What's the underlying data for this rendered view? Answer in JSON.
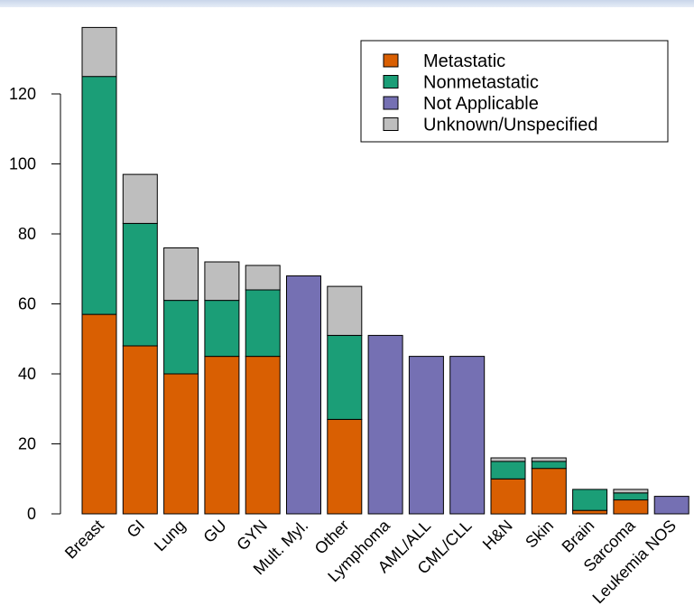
{
  "chart_data": {
    "type": "bar",
    "stacked": true,
    "title": "",
    "xlabel": "",
    "ylabel": "",
    "ylim": [
      0,
      140
    ],
    "yticks": [
      0,
      20,
      40,
      60,
      80,
      100,
      120
    ],
    "grid": false,
    "legend_position": "top-right",
    "categories": [
      "Breast",
      "GI",
      "Lung",
      "GU",
      "GYN",
      "Mult. Myl.",
      "Other",
      "Lymphoma",
      "AML/ALL",
      "CML/CLL",
      "H&N",
      "Skin",
      "Brain",
      "Sarcoma",
      "Leukemia NOS"
    ],
    "series": [
      {
        "name": "Metastatic",
        "color": "#d95f02",
        "values": [
          57,
          48,
          40,
          45,
          45,
          0,
          27,
          0,
          0,
          0,
          10,
          13,
          1,
          4,
          0
        ]
      },
      {
        "name": "Nonmetastatic",
        "color": "#1b9e77",
        "values": [
          68,
          35,
          21,
          16,
          19,
          0,
          24,
          0,
          0,
          0,
          5,
          2,
          6,
          2,
          0
        ]
      },
      {
        "name": "Not Applicable",
        "color": "#7570b3",
        "values": [
          0,
          0,
          0,
          0,
          0,
          68,
          0,
          51,
          45,
          45,
          0,
          0,
          0,
          0,
          5
        ]
      },
      {
        "name": "Unknown/Unspecified",
        "color": "#bebebe",
        "values": [
          14,
          14,
          15,
          11,
          7,
          0,
          14,
          0,
          0,
          0,
          1,
          1,
          0,
          1,
          0
        ]
      }
    ]
  }
}
